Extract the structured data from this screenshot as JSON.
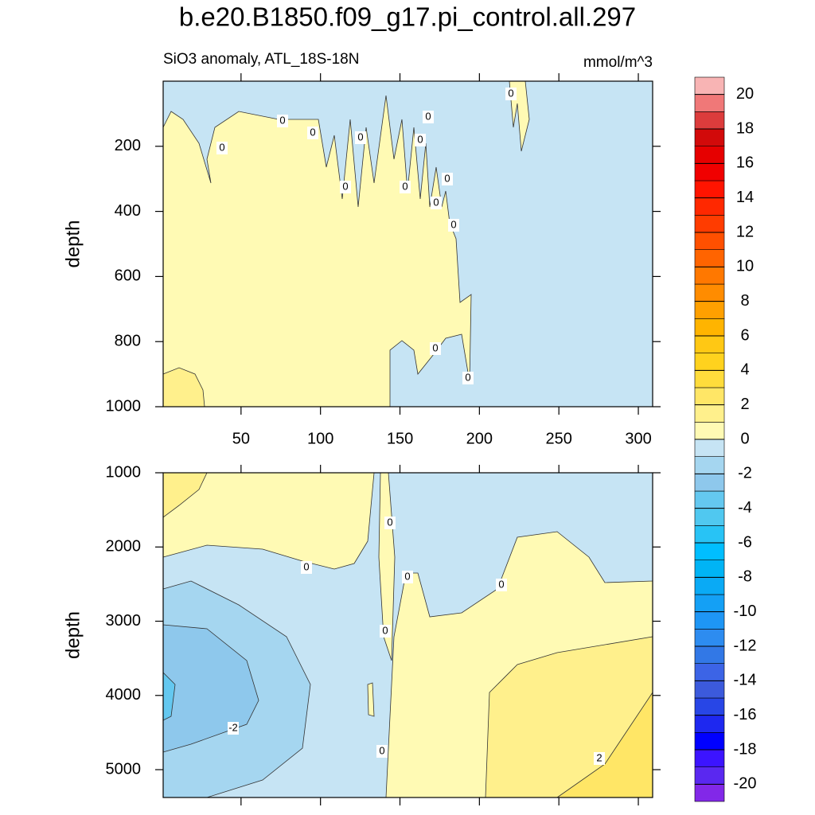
{
  "chart_data": {
    "type": "contour",
    "title": "b.e20.B1850.f09_g17.pi_control.all.297",
    "subtitle_left": "SiO3 anomaly, ATL_18S-18N",
    "subtitle_right": "mmol/m^3",
    "panels": [
      {
        "ylabel": "depth",
        "ylim": [
          0,
          1000
        ],
        "y_inverted": true,
        "yticks": [
          200,
          400,
          600,
          800,
          1000
        ],
        "xlim": [
          1,
          309
        ],
        "xticks": [
          50,
          100,
          150,
          200,
          250,
          300
        ],
        "xtick_labels": true,
        "contour_labels": [
          0,
          0,
          0,
          0,
          0,
          0,
          0,
          0,
          0,
          0,
          0,
          0,
          0,
          0
        ]
      },
      {
        "ylabel": "depth",
        "ylim": [
          1000,
          5375
        ],
        "y_inverted": true,
        "yticks": [
          1000,
          2000,
          3000,
          4000,
          5000
        ],
        "xlim": [
          1,
          309
        ],
        "xticks": [
          50,
          100,
          150,
          200,
          250,
          300
        ],
        "xtick_labels": false,
        "contour_labels": [
          0,
          0,
          0,
          0,
          0,
          -2,
          0,
          2
        ]
      }
    ],
    "colorbar": {
      "lim": [
        -21,
        21
      ],
      "ticks": [
        -20,
        -18,
        -16,
        -14,
        -12,
        -10,
        -8,
        -6,
        -4,
        -2,
        0,
        2,
        4,
        6,
        8,
        10,
        12,
        14,
        16,
        18,
        20
      ],
      "colors": [
        "#8228e8",
        "#5a28f0",
        "#3c14ff",
        "#0000ff",
        "#1e28f0",
        "#2846e6",
        "#3c5adc",
        "#3c64e6",
        "#3278e6",
        "#2d8cf0",
        "#1e96f5",
        "#14a0f5",
        "#0aaaf5",
        "#00b4f5",
        "#00beff",
        "#28c3f5",
        "#50c8f0",
        "#64c8f0",
        "#8ec8ec",
        "#a5d6f0",
        "#c6e4f4",
        "#fffab4",
        "#fff08c",
        "#ffe666",
        "#ffdc3c",
        "#ffd21e",
        "#ffc814",
        "#ffb400",
        "#ffa000",
        "#ff8c00",
        "#ff7800",
        "#ff6400",
        "#ff5000",
        "#ff3c00",
        "#ff2800",
        "#ff1400",
        "#f00000",
        "#e60000",
        "#d20a0a",
        "#dc3c3c",
        "#f07878",
        "#f8b4b4"
      ]
    }
  }
}
